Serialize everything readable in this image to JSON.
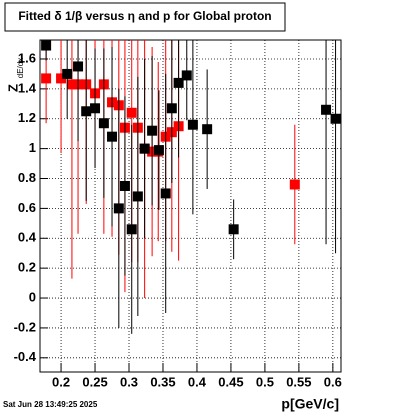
{
  "chart_data": {
    "type": "errorbar",
    "title": "Fitted δ 1/β versus η and p for Global proton",
    "xlabel": "p[GeV/c]",
    "ylabel": "Z",
    "ylabel_sub": "dE/dx",
    "timestamp": "Sat Jun 28 13:49:25 2025",
    "xlim": [
      0.169,
      0.612
    ],
    "ylim": [
      -0.495,
      1.727
    ],
    "xticks": [
      0.2,
      0.25,
      0.3,
      0.35,
      0.4,
      0.45,
      0.5,
      0.55,
      0.6
    ],
    "yticks": [
      -0.4,
      -0.2,
      0,
      0.2,
      0.4,
      0.6,
      0.8,
      1,
      1.2,
      1.4,
      1.6
    ],
    "grid": true,
    "series": [
      {
        "color": "#ff0000",
        "x": [
          0.178,
          0.2,
          0.216,
          0.225,
          0.237,
          0.25,
          0.263,
          0.275,
          0.285,
          0.294,
          0.304,
          0.313,
          0.323,
          0.334,
          0.343,
          0.354,
          0.363,
          0.373,
          0.544
        ],
        "values": [
          1.47,
          1.47,
          1.43,
          1.43,
          1.43,
          1.37,
          1.43,
          1.31,
          1.29,
          1.14,
          1.24,
          1.14,
          1.0,
          0.98,
          0.98,
          1.08,
          1.11,
          1.15,
          0.76
        ],
        "errors": [
          0.3,
          0.5,
          1.3,
          1.0,
          0.8,
          0.5,
          1.0,
          0.9,
          1.0,
          1.1,
          1.0,
          0.9,
          1.0,
          0.7,
          0.6,
          0.7,
          0.8,
          0.9,
          0.4
        ]
      },
      {
        "color": "#000000",
        "x": [
          0.178,
          0.209,
          0.225,
          0.237,
          0.25,
          0.263,
          0.275,
          0.285,
          0.294,
          0.304,
          0.313,
          0.323,
          0.334,
          0.344,
          0.354,
          0.363,
          0.373,
          0.385,
          0.394,
          0.415,
          0.454,
          0.59,
          0.604
        ],
        "values": [
          1.69,
          1.5,
          1.55,
          1.25,
          1.27,
          1.17,
          1.08,
          0.6,
          0.75,
          0.46,
          0.68,
          1.0,
          1.12,
          0.99,
          0.7,
          1.27,
          1.44,
          1.49,
          1.16,
          1.13,
          0.46,
          1.26,
          1.2
        ],
        "errors": [
          0.1,
          0.3,
          0.5,
          0.6,
          0.4,
          0.5,
          0.6,
          0.8,
          0.6,
          0.7,
          0.8,
          0.6,
          0.5,
          0.4,
          0.8,
          0.5,
          0.5,
          0.3,
          0.6,
          0.4,
          0.2,
          0.9,
          0.9
        ]
      }
    ]
  }
}
